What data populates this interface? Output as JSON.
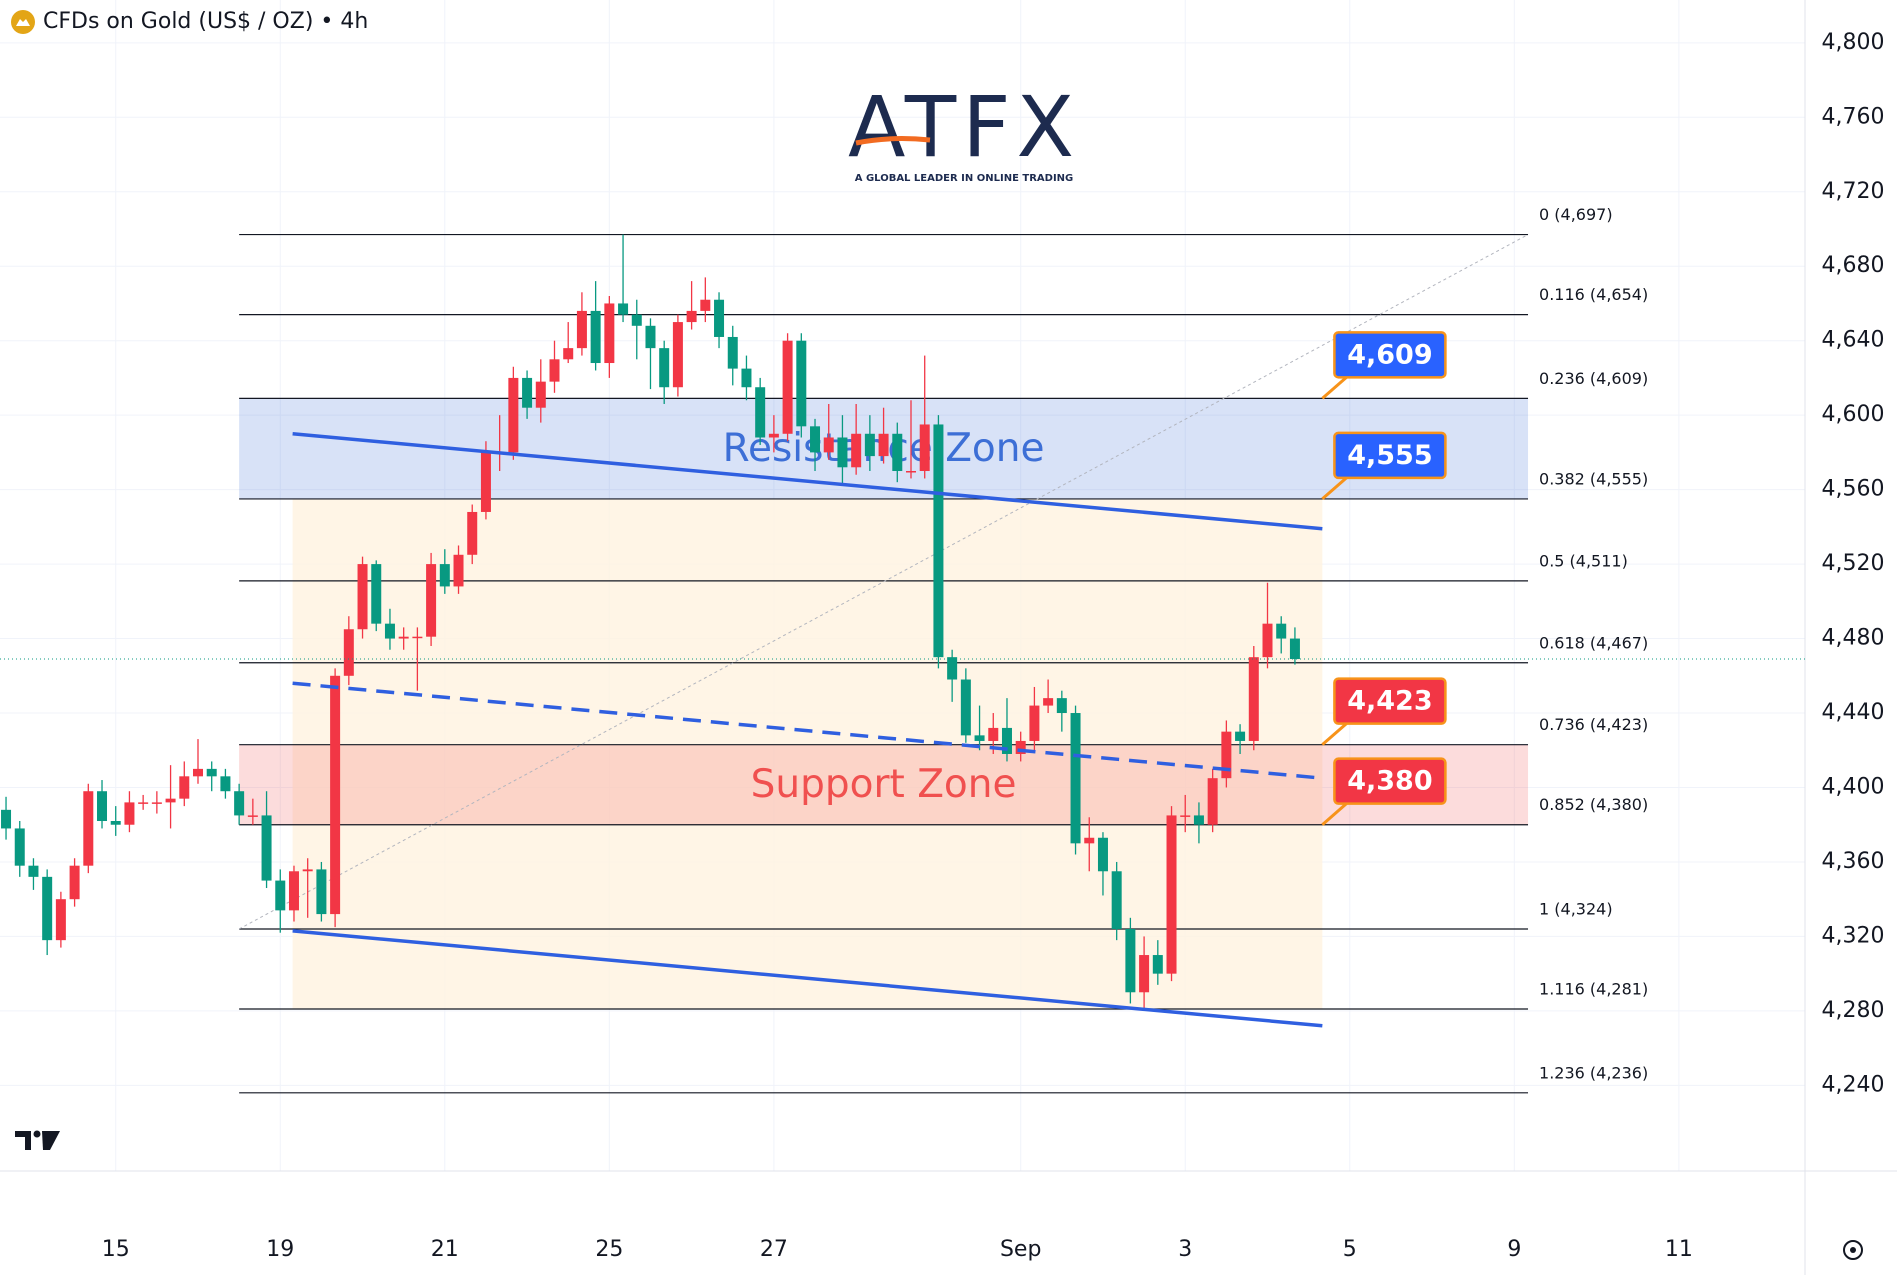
{
  "chart_data": {
    "type": "candlestick",
    "title": "CFDs on Gold (US$ / OZ) • 4h",
    "up_color": "#f23645",
    "down_color": "#089981",
    "open": [
      4388,
      4378,
      4358,
      4352,
      4318,
      4340,
      4358,
      4398,
      4382,
      4380,
      4392,
      4392,
      4392,
      4394,
      4406,
      4410,
      4406,
      4398,
      4385,
      4385,
      4350,
      4334,
      4355,
      4356,
      4332,
      4460,
      4485,
      4520,
      4488,
      4480,
      4481,
      4481,
      4520,
      4508,
      4525,
      4548,
      4580,
      4580,
      4620,
      4604,
      4618,
      4630,
      4636,
      4656,
      4628,
      4660,
      4654,
      4648,
      4636,
      4615,
      4650,
      4656,
      4662,
      4642,
      4625,
      4615,
      4588,
      4590,
      4640,
      4594,
      4580,
      4588,
      4572,
      4590,
      4578,
      4590,
      4570,
      4570,
      4595,
      4470,
      4458,
      4428,
      4425,
      4432,
      4418,
      4425,
      4444,
      4448,
      4440,
      4370,
      4373,
      4355,
      4324,
      4290,
      4310,
      4300,
      4385,
      4385,
      4380,
      4405,
      4430,
      4425,
      4470,
      4488,
      4480
    ],
    "high": [
      4395,
      4382,
      4362,
      4356,
      4344,
      4362,
      4402,
      4404,
      4390,
      4398,
      4396,
      4398,
      4412,
      4414,
      4426,
      4414,
      4410,
      4402,
      4394,
      4398,
      4356,
      4358,
      4362,
      4360,
      4464,
      4492,
      4524,
      4522,
      4496,
      4486,
      4486,
      4526,
      4528,
      4530,
      4552,
      4586,
      4600,
      4626,
      4624,
      4630,
      4640,
      4650,
      4666,
      4672,
      4664,
      4697,
      4662,
      4652,
      4640,
      4654,
      4672,
      4674,
      4666,
      4648,
      4632,
      4620,
      4600,
      4644,
      4644,
      4598,
      4606,
      4600,
      4606,
      4600,
      4604,
      4596,
      4608,
      4632,
      4600,
      4474,
      4464,
      4444,
      4440,
      4448,
      4430,
      4454,
      4458,
      4452,
      4444,
      4384,
      4376,
      4360,
      4330,
      4320,
      4318,
      4390,
      4396,
      4392,
      4410,
      4436,
      4434,
      4476,
      4510,
      4492,
      4486
    ],
    "low": [
      4372,
      4352,
      4345,
      4310,
      4314,
      4336,
      4354,
      4378,
      4374,
      4376,
      4388,
      4386,
      4378,
      4390,
      4402,
      4398,
      4394,
      4380,
      4380,
      4346,
      4322,
      4328,
      4330,
      4328,
      4325,
      4455,
      4480,
      4484,
      4474,
      4474,
      4452,
      4476,
      4504,
      4504,
      4520,
      4544,
      4570,
      4576,
      4598,
      4596,
      4612,
      4628,
      4632,
      4624,
      4620,
      4650,
      4630,
      4614,
      4606,
      4610,
      4646,
      4650,
      4636,
      4616,
      4608,
      4584,
      4580,
      4586,
      4588,
      4570,
      4576,
      4562,
      4568,
      4570,
      4574,
      4564,
      4566,
      4566,
      4464,
      4446,
      4424,
      4420,
      4418,
      4414,
      4414,
      4420,
      4440,
      4430,
      4364,
      4355,
      4342,
      4318,
      4284,
      4281,
      4294,
      4296,
      4376,
      4370,
      4376,
      4400,
      4418,
      4420,
      4464,
      4472,
      4466
    ],
    "close": [
      4378,
      4358,
      4352,
      4318,
      4340,
      4358,
      4398,
      4382,
      4380,
      4392,
      4392,
      4392,
      4394,
      4406,
      4410,
      4406,
      4398,
      4385,
      4385,
      4350,
      4334,
      4355,
      4356,
      4332,
      4460,
      4485,
      4520,
      4488,
      4480,
      4481,
      4481,
      4520,
      4508,
      4525,
      4548,
      4580,
      4580,
      4620,
      4604,
      4618,
      4630,
      4636,
      4656,
      4628,
      4660,
      4654,
      4648,
      4636,
      4615,
      4650,
      4656,
      4662,
      4642,
      4625,
      4615,
      4588,
      4590,
      4640,
      4594,
      4580,
      4588,
      4572,
      4590,
      4578,
      4590,
      4570,
      4570,
      4595,
      4470,
      4458,
      4428,
      4425,
      4432,
      4418,
      4425,
      4444,
      4448,
      4440,
      4370,
      4373,
      4355,
      4324,
      4290,
      4310,
      4300,
      4385,
      4385,
      4380,
      4405,
      4430,
      4425,
      4470,
      4488,
      4480,
      4469
    ],
    "xlim": [
      -0.44,
      131.2
    ],
    "xticks": [
      {
        "value": 8,
        "label": "15"
      },
      {
        "value": 20,
        "label": "19"
      },
      {
        "value": 32,
        "label": "21"
      },
      {
        "value": 44,
        "label": "25"
      },
      {
        "value": 56,
        "label": "27"
      },
      {
        "value": 74,
        "label": "Sep"
      },
      {
        "value": 86,
        "label": "3"
      },
      {
        "value": 98,
        "label": "5"
      },
      {
        "value": 110,
        "label": "9"
      },
      {
        "value": 122,
        "label": "11"
      }
    ],
    "ylim": [
      4194,
      4823
    ],
    "yticks": [
      {
        "value": 4240,
        "label": "4,240"
      },
      {
        "value": 4280,
        "label": "4,280"
      },
      {
        "value": 4320,
        "label": "4,320"
      },
      {
        "value": 4360,
        "label": "4,360"
      },
      {
        "value": 4400,
        "label": "4,400"
      },
      {
        "value": 4440,
        "label": "4,440"
      },
      {
        "value": 4480,
        "label": "4,480"
      },
      {
        "value": 4520,
        "label": "4,520"
      },
      {
        "value": 4560,
        "label": "4,560"
      },
      {
        "value": 4600,
        "label": "4,600"
      },
      {
        "value": 4640,
        "label": "4,640"
      },
      {
        "value": 4680,
        "label": "4,680"
      },
      {
        "value": 4720,
        "label": "4,720"
      },
      {
        "value": 4760,
        "label": "4,760"
      },
      {
        "value": 4800,
        "label": "4,800"
      }
    ],
    "grid": true,
    "fib_levels": [
      {
        "label": "0 (4,697)",
        "value": 4697
      },
      {
        "label": "0.116 (4,654)",
        "value": 4654
      },
      {
        "label": "0.236 (4,609)",
        "value": 4609
      },
      {
        "label": "0.382 (4,555)",
        "value": 4555
      },
      {
        "label": "0.5 (4,511)",
        "value": 4511
      },
      {
        "label": "0.618 (4,467)",
        "value": 4467
      },
      {
        "label": "0.736 (4,423)",
        "value": 4423
      },
      {
        "label": "0.852 (4,380)",
        "value": 4380
      },
      {
        "label": "1 (4,324)",
        "value": 4324
      },
      {
        "label": "1.116 (4,281)",
        "value": 4281
      },
      {
        "label": "1.236 (4,236)",
        "value": 4236
      }
    ],
    "zones": [
      {
        "label": "Resistance Zone",
        "range": [
          4555,
          4609
        ],
        "color": "#3d6fd6"
      },
      {
        "label": "Support Zone",
        "range": [
          4380,
          4423
        ],
        "color": "#f0504f"
      }
    ],
    "price_tags": [
      {
        "label": "4,609",
        "value": 4609,
        "color": "#2962ff"
      },
      {
        "label": "4,555",
        "value": 4555,
        "color": "#2962ff"
      },
      {
        "label": "4,423",
        "value": 4423,
        "color": "#f23645"
      },
      {
        "label": "4,380",
        "value": 4380,
        "color": "#f23645"
      }
    ],
    "trendlines": [
      {
        "start": [
          20.9,
          4590
        ],
        "end": [
          96,
          4539
        ],
        "dashed": false,
        "color": "#2f5fe0"
      },
      {
        "start": [
          20.9,
          4456
        ],
        "end": [
          96,
          4405
        ],
        "dashed": true,
        "color": "#2f5fe0"
      },
      {
        "start": [
          20.9,
          4323
        ],
        "end": [
          96,
          4272
        ],
        "dashed": false,
        "color": "#2f5fe0"
      }
    ]
  },
  "logo": {
    "text": "ATFX",
    "tagline": "A GLOBAL LEADER IN ONLINE TRADING"
  }
}
